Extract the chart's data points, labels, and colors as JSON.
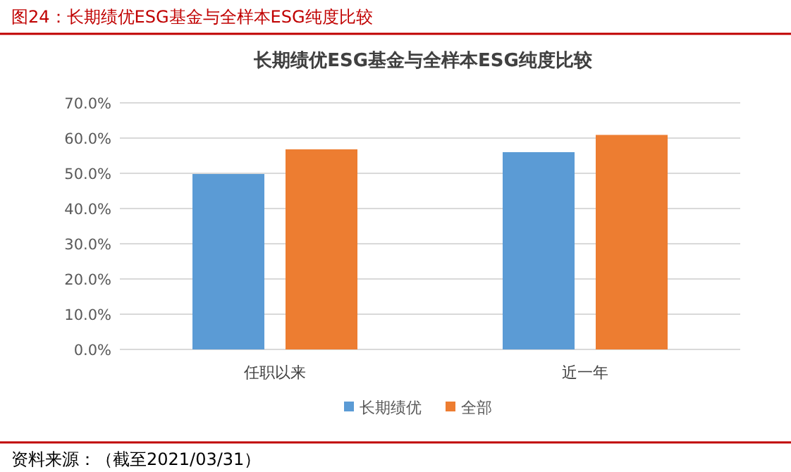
{
  "chart_data": {
    "type": "bar",
    "title": "长期绩优ESG基金与全样本ESG纯度比较",
    "categories": [
      "任职以来",
      "近一年"
    ],
    "series": [
      {
        "name": "长期绩优",
        "color": "#5b9bd5",
        "values": [
          49.8,
          56.0
        ]
      },
      {
        "name": "全部",
        "color": "#ed7d31",
        "values": [
          56.8,
          60.9
        ]
      }
    ],
    "ylim": [
      0,
      70
    ],
    "yticks": [
      {
        "value": 0,
        "label": "0.0%"
      },
      {
        "value": 10,
        "label": "10.0%"
      },
      {
        "value": 20,
        "label": "20.0%"
      },
      {
        "value": 30,
        "label": "30.0%"
      },
      {
        "value": 40,
        "label": "40.0%"
      },
      {
        "value": 50,
        "label": "50.0%"
      },
      {
        "value": 60,
        "label": "60.0%"
      },
      {
        "value": 70,
        "label": "70.0%"
      }
    ],
    "grid": "y",
    "legend": "bottom",
    "annotations": [
      "图24：长期绩优ESG基金与全样本ESG纯度比较",
      "资料来源：（截至2021/03/31）"
    ]
  }
}
